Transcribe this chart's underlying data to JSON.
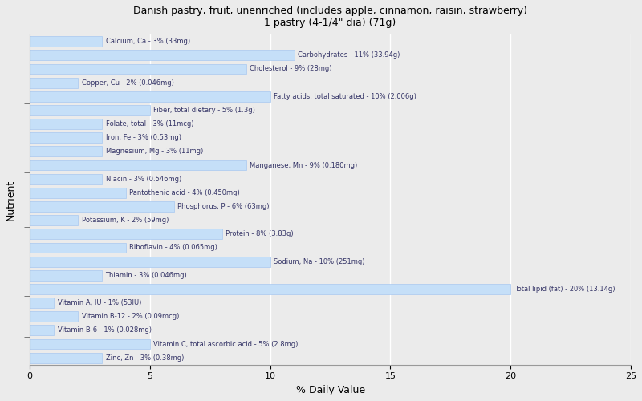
{
  "title": "Danish pastry, fruit, unenriched (includes apple, cinnamon, raisin, strawberry)\n1 pastry (4-1/4\" dia) (71g)",
  "xlabel": "% Daily Value",
  "ylabel": "Nutrient",
  "xlim": [
    0,
    25
  ],
  "bar_color": "#c5dff8",
  "bar_edge_color": "#a8c8f0",
  "background_color": "#ebebeb",
  "plot_bg_color": "#ebebeb",
  "grid_color": "#ffffff",
  "text_color": "#333366",
  "nutrients": [
    {
      "label": "Calcium, Ca - 3% (33mg)",
      "value": 3
    },
    {
      "label": "Carbohydrates - 11% (33.94g)",
      "value": 11
    },
    {
      "label": "Cholesterol - 9% (28mg)",
      "value": 9
    },
    {
      "label": "Copper, Cu - 2% (0.046mg)",
      "value": 2
    },
    {
      "label": "Fatty acids, total saturated - 10% (2.006g)",
      "value": 10
    },
    {
      "label": "Fiber, total dietary - 5% (1.3g)",
      "value": 5
    },
    {
      "label": "Folate, total - 3% (11mcg)",
      "value": 3
    },
    {
      "label": "Iron, Fe - 3% (0.53mg)",
      "value": 3
    },
    {
      "label": "Magnesium, Mg - 3% (11mg)",
      "value": 3
    },
    {
      "label": "Manganese, Mn - 9% (0.180mg)",
      "value": 9
    },
    {
      "label": "Niacin - 3% (0.546mg)",
      "value": 3
    },
    {
      "label": "Pantothenic acid - 4% (0.450mg)",
      "value": 4
    },
    {
      "label": "Phosphorus, P - 6% (63mg)",
      "value": 6
    },
    {
      "label": "Potassium, K - 2% (59mg)",
      "value": 2
    },
    {
      "label": "Protein - 8% (3.83g)",
      "value": 8
    },
    {
      "label": "Riboflavin - 4% (0.065mg)",
      "value": 4
    },
    {
      "label": "Sodium, Na - 10% (251mg)",
      "value": 10
    },
    {
      "label": "Thiamin - 3% (0.046mg)",
      "value": 3
    },
    {
      "label": "Total lipid (fat) - 20% (13.14g)",
      "value": 20
    },
    {
      "label": "Vitamin A, IU - 1% (53IU)",
      "value": 1
    },
    {
      "label": "Vitamin B-12 - 2% (0.09mcg)",
      "value": 2
    },
    {
      "label": "Vitamin B-6 - 1% (0.028mg)",
      "value": 1
    },
    {
      "label": "Vitamin C, total ascorbic acid - 5% (2.8mg)",
      "value": 5
    },
    {
      "label": "Zinc, Zn - 3% (0.38mg)",
      "value": 3
    }
  ]
}
